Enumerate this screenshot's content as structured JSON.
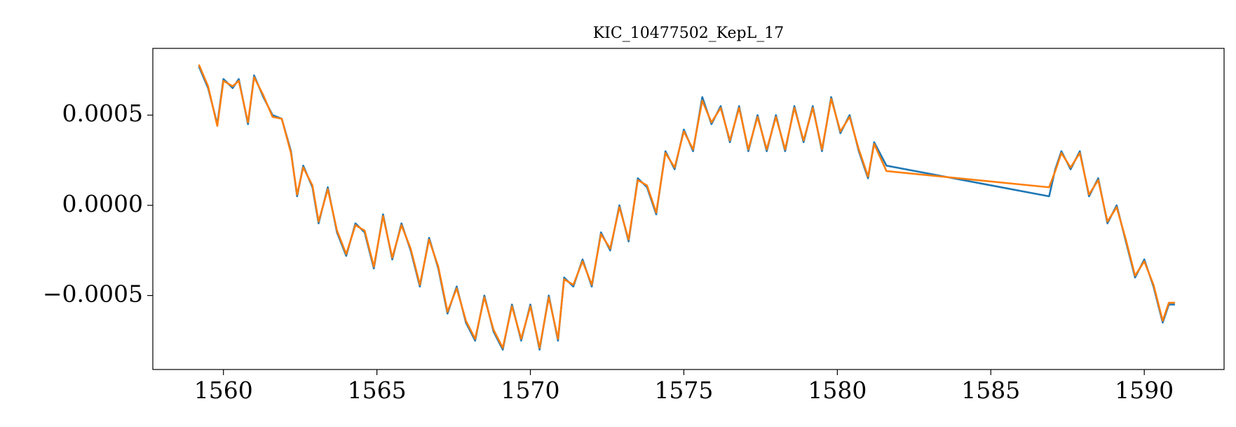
{
  "chart_data": {
    "type": "line",
    "title": "KIC_10477502_KepL_17",
    "x": [
      1559.2,
      1559.5,
      1559.8,
      1560.0,
      1560.3,
      1560.5,
      1560.8,
      1561.0,
      1561.3,
      1561.6,
      1561.9,
      1562.2,
      1562.4,
      1562.6,
      1562.9,
      1563.1,
      1563.4,
      1563.7,
      1564.0,
      1564.3,
      1564.6,
      1564.9,
      1565.2,
      1565.5,
      1565.8,
      1566.1,
      1566.4,
      1566.7,
      1567.0,
      1567.3,
      1567.6,
      1567.9,
      1568.2,
      1568.5,
      1568.8,
      1569.1,
      1569.4,
      1569.7,
      1570.0,
      1570.3,
      1570.6,
      1570.9,
      1571.1,
      1571.4,
      1571.7,
      1572.0,
      1572.3,
      1572.6,
      1572.9,
      1573.2,
      1573.5,
      1573.8,
      1574.1,
      1574.4,
      1574.7,
      1575.0,
      1575.3,
      1575.6,
      1575.9,
      1576.2,
      1576.5,
      1576.8,
      1577.1,
      1577.4,
      1577.7,
      1578.0,
      1578.3,
      1578.6,
      1578.9,
      1579.2,
      1579.5,
      1579.8,
      1580.1,
      1580.4,
      1580.7,
      1581.0,
      1581.2,
      1581.6,
      1586.9,
      1587.1,
      1587.3,
      1587.6,
      1587.9,
      1588.2,
      1588.5,
      1588.8,
      1589.1,
      1589.4,
      1589.7,
      1590.0,
      1590.3,
      1590.6,
      1590.8,
      1591.0
    ],
    "series": [
      {
        "color": "#1f77b4",
        "values": [
          0.00077,
          0.00065,
          0.00045,
          0.0007,
          0.00065,
          0.0007,
          0.00045,
          0.00072,
          0.0006,
          0.0005,
          0.00048,
          0.0003,
          5e-05,
          0.00022,
          0.0001,
          -0.0001,
          0.0001,
          -0.00015,
          -0.00028,
          -0.0001,
          -0.00015,
          -0.00035,
          -5e-05,
          -0.0003,
          -0.0001,
          -0.00025,
          -0.00045,
          -0.00018,
          -0.00035,
          -0.0006,
          -0.00045,
          -0.00065,
          -0.00075,
          -0.0005,
          -0.0007,
          -0.0008,
          -0.00055,
          -0.00075,
          -0.00055,
          -0.0008,
          -0.0005,
          -0.00075,
          -0.0004,
          -0.00045,
          -0.0003,
          -0.00045,
          -0.00015,
          -0.00025,
          0.0,
          -0.0002,
          0.00015,
          0.0001,
          -5e-05,
          0.0003,
          0.0002,
          0.00042,
          0.0003,
          0.0006,
          0.00045,
          0.00055,
          0.00035,
          0.00055,
          0.0003,
          0.0005,
          0.0003,
          0.0005,
          0.0003,
          0.00055,
          0.00035,
          0.00055,
          0.0003,
          0.0006,
          0.0004,
          0.0005,
          0.0003,
          0.00015,
          0.00035,
          0.00022,
          5e-05,
          0.0002,
          0.0003,
          0.0002,
          0.0003,
          5e-05,
          0.00015,
          -0.0001,
          0.0,
          -0.0002,
          -0.0004,
          -0.0003,
          -0.00045,
          -0.00065,
          -0.00055,
          -0.00055
        ]
      },
      {
        "color": "#ff7f0e",
        "values": [
          0.00078,
          0.00066,
          0.00044,
          0.00069,
          0.00066,
          0.00069,
          0.00046,
          0.00071,
          0.00061,
          0.00049,
          0.00048,
          0.00029,
          6e-05,
          0.00021,
          0.00011,
          -9e-05,
          9e-05,
          -0.00014,
          -0.00027,
          -0.00011,
          -0.00014,
          -0.00034,
          -6e-05,
          -0.00029,
          -0.00011,
          -0.00024,
          -0.00044,
          -0.00019,
          -0.00034,
          -0.00059,
          -0.00046,
          -0.00064,
          -0.00074,
          -0.00051,
          -0.00069,
          -0.00079,
          -0.00056,
          -0.00074,
          -0.00056,
          -0.00079,
          -0.00051,
          -0.00074,
          -0.00041,
          -0.00044,
          -0.00031,
          -0.00044,
          -0.00016,
          -0.00024,
          -1e-05,
          -0.00019,
          0.00014,
          0.00011,
          -4e-05,
          0.00029,
          0.00021,
          0.00041,
          0.00031,
          0.00058,
          0.00046,
          0.00054,
          0.00036,
          0.00054,
          0.00031,
          0.00049,
          0.00031,
          0.00049,
          0.00031,
          0.00054,
          0.00036,
          0.00054,
          0.00031,
          0.00059,
          0.00041,
          0.00049,
          0.00031,
          0.00016,
          0.00034,
          0.00019,
          0.0001,
          0.00019,
          0.00029,
          0.00021,
          0.00029,
          6e-05,
          0.00014,
          -9e-05,
          -1e-05,
          -0.00019,
          -0.00039,
          -0.00031,
          -0.00044,
          -0.00064,
          -0.00054,
          -0.00054
        ]
      }
    ],
    "xlim": [
      1557.7,
      1592.6
    ],
    "xticks": [
      1560,
      1565,
      1570,
      1575,
      1580,
      1585,
      1590
    ],
    "ylim": [
      -0.00091,
      0.00087
    ],
    "yticks": [
      {
        "value": -0.0005,
        "label": "−0.0005"
      },
      {
        "value": 0,
        "label": "0.0000"
      },
      0.0005
    ],
    "grid": false
  }
}
